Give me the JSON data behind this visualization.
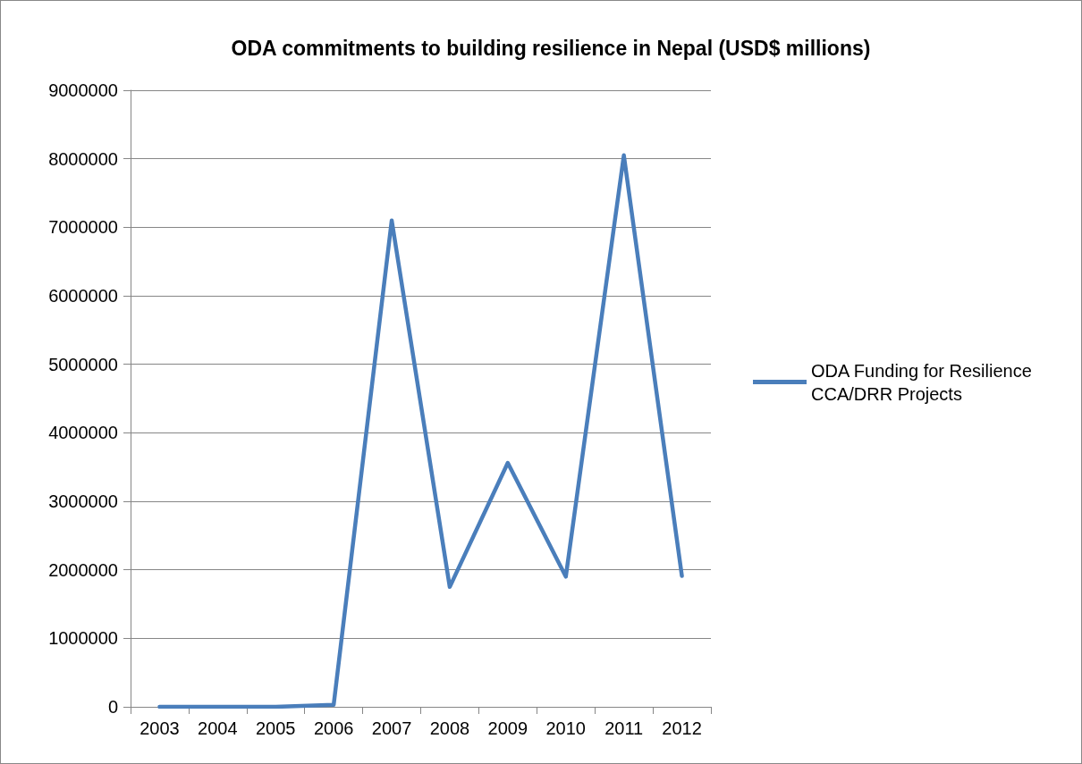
{
  "chart_data": {
    "type": "line",
    "title": "ODA commitments to building resilience in Nepal (USD$ millions)",
    "categories": [
      "2003",
      "2004",
      "2005",
      "2006",
      "2007",
      "2008",
      "2009",
      "2010",
      "2011",
      "2012"
    ],
    "series": [
      {
        "name": "ODA Funding for Resilience CCA/DRR Projects",
        "color": "#4a7ebb",
        "values": [
          0,
          0,
          0,
          30000,
          7100000,
          1750000,
          3560000,
          1900000,
          8050000,
          1910000
        ]
      }
    ],
    "ylim": [
      0,
      9000000
    ],
    "yticks": [
      0,
      1000000,
      2000000,
      3000000,
      4000000,
      5000000,
      6000000,
      7000000,
      8000000,
      9000000
    ],
    "grid": "y",
    "legend": "right",
    "marker": "none",
    "line_style": "solid"
  }
}
